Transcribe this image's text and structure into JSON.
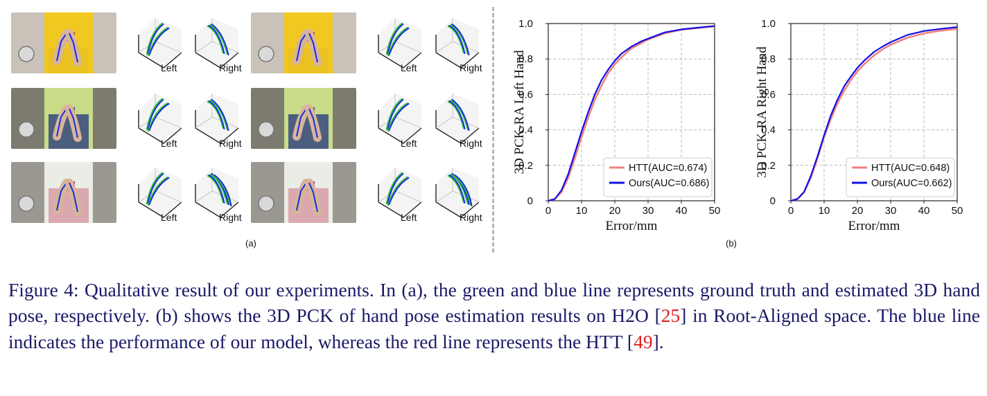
{
  "panel_a": {
    "label": "(a)",
    "pose_labels": {
      "left": "Left",
      "right": "Right"
    },
    "line_colors": {
      "ground_truth": "#3cc03c",
      "estimated": "#1530e0"
    }
  },
  "panel_b": {
    "label": "(b)"
  },
  "chart_data": [
    {
      "type": "line",
      "ylabel": "3D PCK-RA Left Hand",
      "xlabel": "Error/mm",
      "xlim": [
        0,
        50
      ],
      "ylim": [
        0,
        1.0
      ],
      "xticks": [
        "0",
        "10",
        "20",
        "30",
        "40",
        "50"
      ],
      "yticks": [
        "0",
        "0.2",
        "0.4",
        "0.6",
        "0.8",
        "1.0"
      ],
      "grid": true,
      "legend_position": "bottom-right",
      "series": [
        {
          "name": "HTT(AUC=0.674)",
          "color": "#f08080",
          "x": [
            0,
            2,
            4,
            6,
            8,
            10,
            12,
            14,
            16,
            18,
            20,
            22,
            25,
            28,
            30,
            35,
            40,
            45,
            50
          ],
          "y": [
            0,
            0.01,
            0.05,
            0.13,
            0.24,
            0.36,
            0.47,
            0.57,
            0.65,
            0.72,
            0.77,
            0.81,
            0.86,
            0.89,
            0.91,
            0.945,
            0.965,
            0.975,
            0.985
          ]
        },
        {
          "name": "Ours(AUC=0.686)",
          "color": "#1010e6",
          "x": [
            0,
            2,
            4,
            6,
            8,
            10,
            12,
            14,
            16,
            18,
            20,
            22,
            25,
            28,
            30,
            35,
            40,
            45,
            50
          ],
          "y": [
            0,
            0.01,
            0.06,
            0.15,
            0.27,
            0.39,
            0.5,
            0.6,
            0.68,
            0.74,
            0.79,
            0.83,
            0.87,
            0.9,
            0.915,
            0.95,
            0.967,
            0.977,
            0.986
          ]
        }
      ]
    },
    {
      "type": "line",
      "ylabel": "3D PCK-RA Right Hand",
      "xlabel": "Error/mm",
      "xlim": [
        0,
        50
      ],
      "ylim": [
        0,
        1.0
      ],
      "xticks": [
        "0",
        "10",
        "20",
        "30",
        "40",
        "50"
      ],
      "yticks": [
        "0",
        "0.2",
        "0.4",
        "0.6",
        "0.8",
        "1.0"
      ],
      "grid": true,
      "legend_position": "bottom-right",
      "series": [
        {
          "name": "HTT(AUC=0.648)",
          "color": "#f08080",
          "x": [
            0,
            2,
            4,
            6,
            8,
            10,
            12,
            14,
            16,
            18,
            20,
            22,
            25,
            28,
            30,
            35,
            40,
            45,
            50
          ],
          "y": [
            0,
            0.01,
            0.05,
            0.13,
            0.24,
            0.36,
            0.46,
            0.55,
            0.62,
            0.68,
            0.73,
            0.77,
            0.82,
            0.86,
            0.88,
            0.92,
            0.945,
            0.96,
            0.97
          ]
        },
        {
          "name": "Ours(AUC=0.662)",
          "color": "#1010e6",
          "x": [
            0,
            2,
            4,
            6,
            8,
            10,
            12,
            14,
            16,
            18,
            20,
            22,
            25,
            28,
            30,
            35,
            40,
            45,
            50
          ],
          "y": [
            0,
            0.01,
            0.05,
            0.14,
            0.25,
            0.37,
            0.48,
            0.57,
            0.645,
            0.7,
            0.75,
            0.79,
            0.84,
            0.875,
            0.895,
            0.935,
            0.958,
            0.97,
            0.98
          ]
        }
      ]
    }
  ],
  "caption": {
    "part1": "Figure 4: Qualitative result of our experiments. In (a), the green and blue line represents ground truth and estimated 3D hand pose, respectively. (b) shows the 3D PCK of hand pose estimation results on H2O [",
    "ref1": "25",
    "part2": "] in Root-Aligned space. The blue line indicates the performance of our model, whereas the red line represents the HTT [",
    "ref2": "49",
    "part3": "]."
  }
}
